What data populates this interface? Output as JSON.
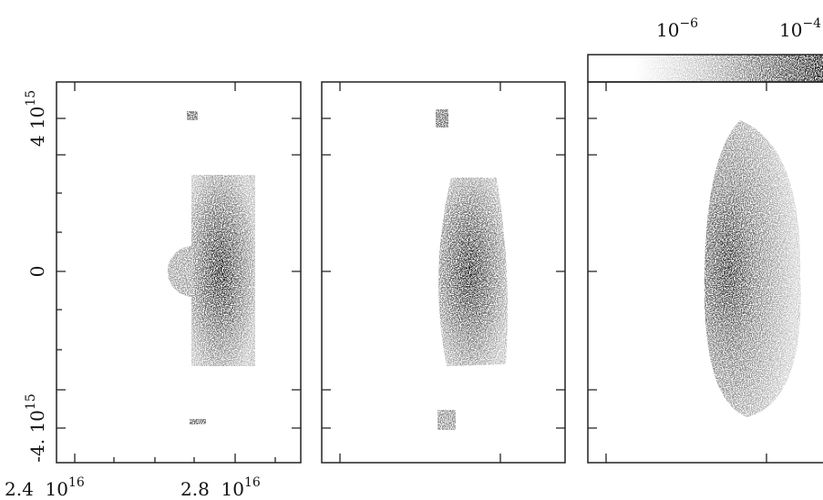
{
  "colorbar": {
    "labels": [
      {
        "base": "10",
        "exponent": "−6"
      },
      {
        "base": "10",
        "exponent": "−4"
      }
    ]
  },
  "y_axis": {
    "labels": [
      {
        "base": "4 10",
        "exponent": "15"
      },
      {
        "base": "0"
      },
      {
        "base": "-4. 10",
        "exponent": "15"
      }
    ]
  },
  "x_axis": {
    "labels": [
      {
        "base": "2.4  10",
        "exponent": "16"
      },
      {
        "base": "2.8  10",
        "exponent": "16"
      }
    ]
  }
}
